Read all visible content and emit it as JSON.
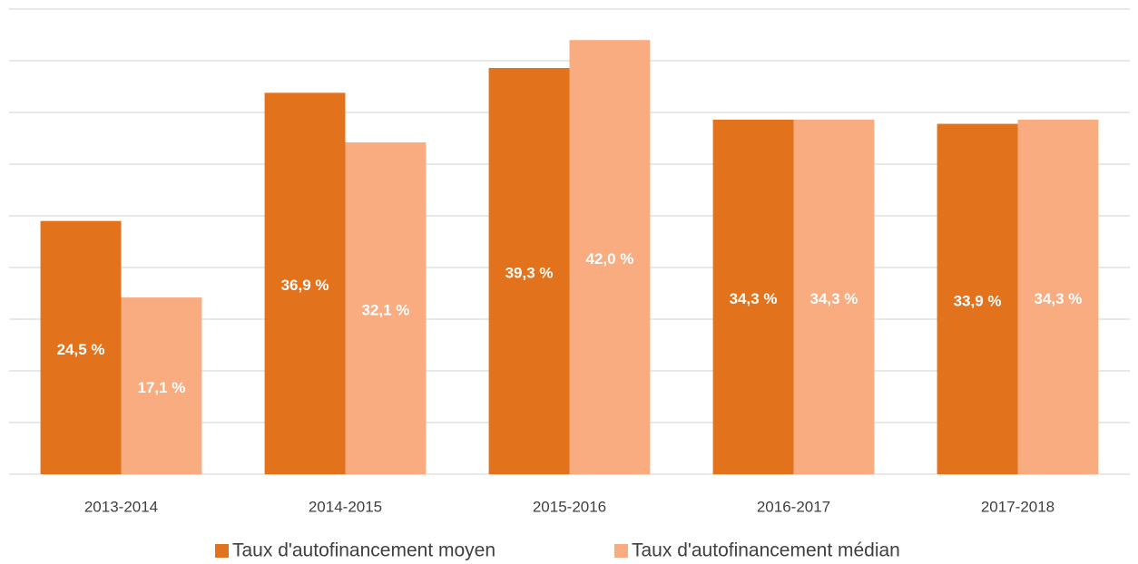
{
  "chart_data": {
    "type": "bar",
    "categories": [
      "2013-2014",
      "2014-2015",
      "2015-2016",
      "2016-2017",
      "2017-2018"
    ],
    "series": [
      {
        "name": "Taux d'autofinancement moyen",
        "color": "#e2721c",
        "values": [
          24.5,
          36.9,
          39.3,
          34.3,
          33.9
        ],
        "value_labels": [
          "24,5 %",
          "36,9 %",
          "39,3 %",
          "34,3 %",
          "33,9 %"
        ]
      },
      {
        "name": "Taux d'autofinancement médian",
        "color": "#f8ac80",
        "values": [
          17.1,
          32.1,
          42.0,
          34.3,
          34.3
        ],
        "value_labels": [
          "17,1 %",
          "32,1 %",
          "42,0 %",
          "34,3 %",
          "34,3 %"
        ]
      }
    ],
    "ylim": [
      0,
      45
    ],
    "yticks": [
      0,
      5,
      10,
      15,
      20,
      25,
      30,
      35,
      40,
      45
    ],
    "grid": true,
    "legend": "bottom"
  }
}
